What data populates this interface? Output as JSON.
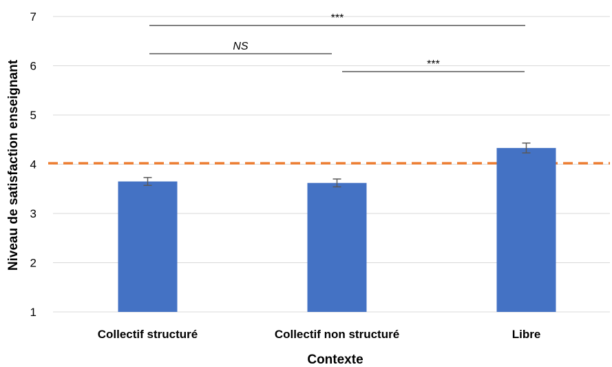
{
  "chart_data": {
    "type": "bar",
    "title": "",
    "xlabel": "Contexte",
    "ylabel": "Niveau de satisfaction enseignant",
    "ylim": [
      1,
      7
    ],
    "yticks": [
      "1",
      "2",
      "3",
      "4",
      "5",
      "6",
      "7"
    ],
    "grid": true,
    "categories": [
      "Collectif structuré",
      "Collectif non structuré",
      "Libre"
    ],
    "values": [
      3.65,
      3.62,
      4.33
    ],
    "errors": [
      0.08,
      0.08,
      0.1
    ],
    "reference_line": {
      "value": 4.02,
      "style": "dashed",
      "color": "#ED7D31"
    },
    "significance": [
      {
        "from": 0,
        "to": 2,
        "label": "***",
        "italic": false
      },
      {
        "from": 0,
        "to": 1,
        "label": "NS",
        "italic": true
      },
      {
        "from": 1,
        "to": 2,
        "label": "***",
        "italic": false
      }
    ],
    "colors": {
      "bar": "#4472C4",
      "error_bar": "#595959",
      "grid": "#D9D9D9"
    }
  }
}
